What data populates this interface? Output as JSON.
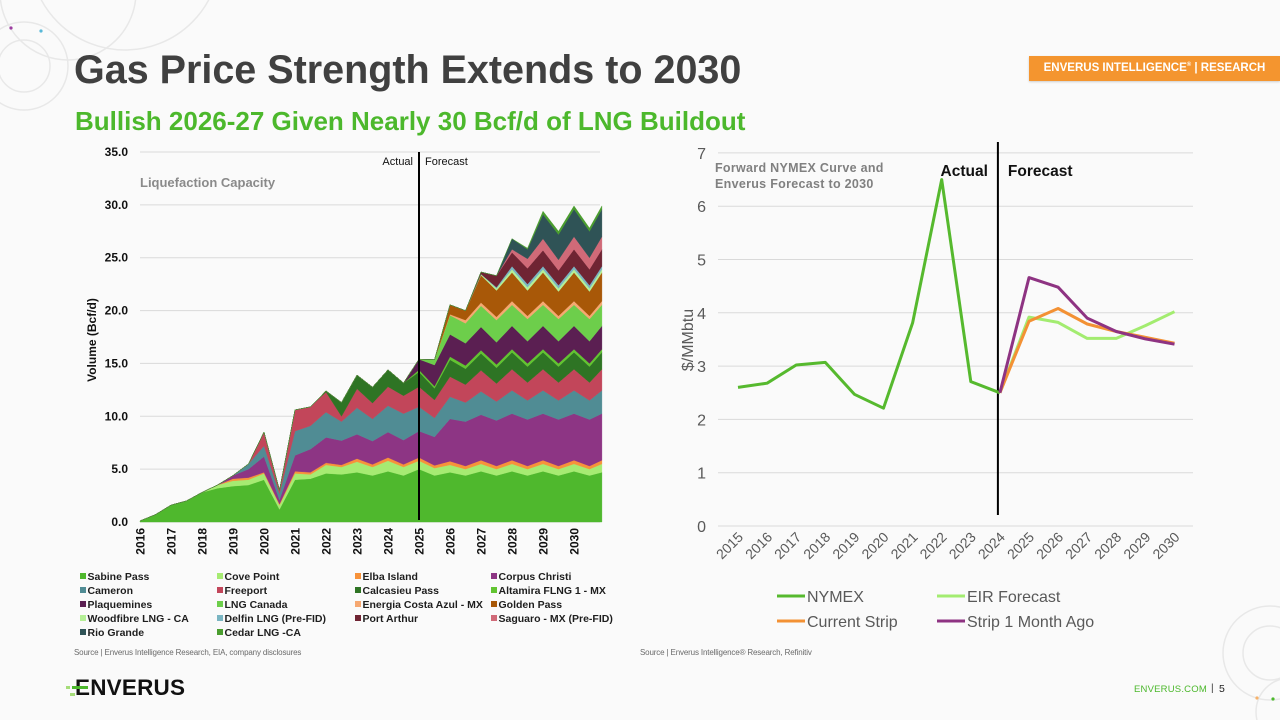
{
  "slide": {
    "title": "Gas Price Strength Extends to 2030",
    "subtitle": "Bullish 2026-27 Given Nearly 30 Bcf/d of LNG Buildout",
    "badge": {
      "text": "ENVERUS INTELLIGENCE",
      "registered": "®",
      "suffix": " | RESEARCH"
    },
    "colors": {
      "accent_green": "#4cb82c",
      "badge_orange": "#f4952f",
      "title_gray": "#404040"
    }
  },
  "footer": {
    "logo_text": "ENVERUS",
    "site": "ENVERUS.COM",
    "separator": "|",
    "page_number": "5"
  },
  "chart_data": [
    {
      "type": "area",
      "stacked": true,
      "title": "Liquefaction Capacity",
      "xlabel": "",
      "ylabel": "Volume (Bcf/d)",
      "ylim": [
        0,
        35
      ],
      "xlim": [
        2016,
        2031
      ],
      "yticks": [
        "0.0",
        "5.0",
        "10.0",
        "15.0",
        "20.0",
        "25.0",
        "30.0",
        "35.0"
      ],
      "xticks": [
        "2016",
        "2017",
        "2018",
        "2019",
        "2020",
        "2021",
        "2022",
        "2023",
        "2024",
        "2025",
        "2026",
        "2027",
        "2028",
        "2029",
        "2030"
      ],
      "grid": true,
      "legend": "bottom",
      "divider": {
        "at": 2025,
        "left_label": "Actual",
        "right_label": "Forecast"
      },
      "source": "Source | Enverus Intelligence Research, EIA, company disclosures",
      "x": [
        2016.0,
        2016.5,
        2017.0,
        2017.5,
        2018.0,
        2018.5,
        2019.0,
        2019.5,
        2020.0,
        2020.5,
        2021.0,
        2021.5,
        2022.0,
        2022.5,
        2023.0,
        2023.5,
        2024.0,
        2024.5,
        2025.0,
        2025.5,
        2026.0,
        2026.5,
        2027.0,
        2027.5,
        2028.0,
        2028.5,
        2029.0,
        2029.5,
        2030.0,
        2030.5,
        2030.9
      ],
      "series": [
        {
          "name": "Sabine Pass",
          "color": "#4fb82d",
          "values": [
            0.1,
            0.7,
            1.6,
            2.0,
            2.8,
            3.2,
            3.4,
            3.5,
            4.0,
            1.2,
            4.0,
            4.1,
            4.6,
            4.5,
            4.7,
            4.4,
            4.8,
            4.4,
            5.0,
            4.4,
            4.7,
            4.4,
            4.8,
            4.4,
            4.8,
            4.4,
            4.8,
            4.4,
            4.8,
            4.4,
            4.7
          ]
        },
        {
          "name": "Cove Point",
          "color": "#a6eb72",
          "values": [
            0,
            0,
            0,
            0,
            0,
            0.3,
            0.5,
            0.5,
            0.6,
            0.4,
            0.6,
            0.4,
            0.8,
            0.7,
            1.0,
            0.8,
            1.0,
            0.8,
            0.8,
            0.7,
            0.7,
            0.6,
            0.7,
            0.6,
            0.7,
            0.6,
            0.7,
            0.6,
            0.7,
            0.6,
            0.8
          ]
        },
        {
          "name": "Elba Island",
          "color": "#f7923a",
          "values": [
            0,
            0,
            0,
            0,
            0,
            0,
            0.2,
            0.2,
            0.1,
            0.1,
            0.2,
            0.2,
            0.2,
            0.2,
            0.3,
            0.25,
            0.3,
            0.25,
            0.3,
            0.25,
            0.35,
            0.3,
            0.35,
            0.3,
            0.35,
            0.3,
            0.35,
            0.3,
            0.35,
            0.3,
            0.35
          ]
        },
        {
          "name": "Corpus Christi",
          "color": "#8d3584",
          "values": [
            0,
            0,
            0,
            0,
            0,
            0,
            0.3,
            0.8,
            1.5,
            0.4,
            1.5,
            2.2,
            2.4,
            2.3,
            2.3,
            2.2,
            2.4,
            2.3,
            2.5,
            2.7,
            4.0,
            4.2,
            4.3,
            4.3,
            4.4,
            4.4,
            4.4,
            4.4,
            4.4,
            4.4,
            4.4
          ]
        },
        {
          "name": "Cameron",
          "color": "#508c94",
          "values": [
            0,
            0,
            0,
            0,
            0,
            0,
            0,
            0.5,
            1.0,
            0.6,
            2.3,
            2.2,
            2.4,
            1.8,
            2.5,
            2.1,
            2.5,
            2.5,
            2.3,
            1.8,
            2.1,
            1.8,
            2.2,
            1.8,
            2.2,
            1.8,
            2.2,
            1.8,
            2.2,
            1.8,
            2.2
          ]
        },
        {
          "name": "Freeport",
          "color": "#c2465a",
          "values": [
            0,
            0,
            0,
            0,
            0,
            0,
            0,
            0,
            1.3,
            0.3,
            2.0,
            1.8,
            1.9,
            0.5,
            1.8,
            1.5,
            1.8,
            1.7,
            1.9,
            1.7,
            1.9,
            1.7,
            2.0,
            1.7,
            2.0,
            1.7,
            2.0,
            1.7,
            2.0,
            1.7,
            2.0
          ]
        },
        {
          "name": "Calcasieu Pass",
          "color": "#2e7424",
          "values": [
            0,
            0,
            0,
            0,
            0,
            0,
            0,
            0,
            0,
            0,
            0,
            0,
            0.1,
            1.3,
            1.3,
            1.5,
            1.6,
            1.2,
            1.4,
            1.1,
            1.6,
            1.5,
            1.6,
            1.5,
            1.6,
            1.5,
            1.6,
            1.5,
            1.6,
            1.5,
            1.6
          ]
        },
        {
          "name": "Altamira FLNG 1 - MX",
          "color": "#62c431",
          "values": [
            0,
            0,
            0,
            0,
            0,
            0,
            0,
            0,
            0,
            0,
            0,
            0,
            0,
            0,
            0,
            0,
            0,
            0,
            0.2,
            0.2,
            0.3,
            0.3,
            0.3,
            0.3,
            0.3,
            0.3,
            0.3,
            0.3,
            0.3,
            0.3,
            0.3
          ]
        },
        {
          "name": "Plaquemines",
          "color": "#5b1f52",
          "values": [
            0,
            0,
            0,
            0,
            0,
            0,
            0,
            0,
            0,
            0,
            0,
            0,
            0,
            0,
            0,
            0,
            0,
            0,
            1.0,
            2.0,
            2.1,
            2.1,
            2.2,
            2.1,
            2.2,
            2.1,
            2.2,
            2.1,
            2.2,
            2.1,
            2.2
          ]
        },
        {
          "name": "LNG Canada",
          "color": "#6dce4b",
          "values": [
            0,
            0,
            0,
            0,
            0,
            0,
            0,
            0,
            0,
            0,
            0,
            0,
            0,
            0,
            0,
            0,
            0,
            0,
            0,
            0.5,
            1.8,
            1.9,
            2.0,
            2.1,
            2.0,
            2.1,
            2.0,
            2.1,
            2.0,
            2.1,
            2.0
          ]
        },
        {
          "name": "Energia Costa Azul - MX",
          "color": "#f6a871",
          "values": [
            0,
            0,
            0,
            0,
            0,
            0,
            0,
            0,
            0,
            0,
            0,
            0,
            0,
            0,
            0,
            0,
            0,
            0,
            0,
            0,
            0.1,
            0.3,
            0.3,
            0.3,
            0.35,
            0.3,
            0.35,
            0.3,
            0.35,
            0.3,
            0.35
          ]
        },
        {
          "name": "Golden Pass",
          "color": "#a85808",
          "values": [
            0,
            0,
            0,
            0,
            0,
            0,
            0,
            0,
            0,
            0,
            0,
            0,
            0,
            0,
            0,
            0,
            0,
            0,
            0,
            0,
            0.9,
            0.9,
            2.6,
            2.5,
            2.7,
            2.4,
            2.7,
            2.3,
            2.7,
            2.3,
            2.7
          ]
        },
        {
          "name": "Woodfibre LNG - CA",
          "color": "#b5f096",
          "values": [
            0,
            0,
            0,
            0,
            0,
            0,
            0,
            0,
            0,
            0,
            0,
            0,
            0,
            0,
            0,
            0,
            0,
            0,
            0,
            0,
            0,
            0,
            0.1,
            0.2,
            0.3,
            0.3,
            0.3,
            0.3,
            0.3,
            0.3,
            0.3
          ]
        },
        {
          "name": "Delfin LNG (Pre-FID)",
          "color": "#7ab5c2",
          "values": [
            0,
            0,
            0,
            0,
            0,
            0,
            0,
            0,
            0,
            0,
            0,
            0,
            0,
            0,
            0,
            0,
            0,
            0,
            0,
            0,
            0,
            0,
            0,
            0.1,
            0.3,
            0.3,
            0.3,
            0.3,
            0.3,
            0.3,
            0.3
          ]
        },
        {
          "name": "Port Arthur",
          "color": "#6f2433",
          "values": [
            0,
            0,
            0,
            0,
            0,
            0,
            0,
            0,
            0,
            0,
            0,
            0,
            0,
            0,
            0,
            0,
            0,
            0,
            0,
            0,
            0,
            0,
            0.2,
            1.1,
            1.3,
            1.5,
            1.5,
            1.4,
            1.6,
            1.5,
            1.6
          ]
        },
        {
          "name": "Saguaro - MX (Pre-FID)",
          "color": "#d06a78",
          "values": [
            0,
            0,
            0,
            0,
            0,
            0,
            0,
            0,
            0,
            0,
            0,
            0,
            0,
            0,
            0,
            0,
            0,
            0,
            0,
            0,
            0,
            0,
            0,
            0,
            0.3,
            0.9,
            1.1,
            1.0,
            1.2,
            1.1,
            1.2
          ]
        },
        {
          "name": "Rio Grande",
          "color": "#2f5356",
          "values": [
            0,
            0,
            0,
            0,
            0,
            0,
            0,
            0,
            0,
            0,
            0,
            0,
            0,
            0,
            0,
            0,
            0,
            0,
            0,
            0,
            0,
            0,
            0,
            0,
            1.0,
            0.9,
            2.3,
            2.4,
            2.6,
            2.5,
            2.6
          ]
        },
        {
          "name": "Cedar LNG -CA",
          "color": "#4a9d2e",
          "values": [
            0,
            0,
            0,
            0,
            0,
            0,
            0,
            0,
            0,
            0,
            0,
            0,
            0,
            0,
            0,
            0,
            0,
            0,
            0,
            0,
            0,
            0,
            0,
            0,
            0,
            0.1,
            0.3,
            0.3,
            0.3,
            0.3,
            0.3
          ]
        }
      ]
    },
    {
      "type": "line",
      "title": "Forward NYMEX Curve and Enverus Forecast to 2030",
      "title_lines": [
        "Forward NYMEX Curve and",
        "Enverus Forecast to 2030"
      ],
      "xlabel": "",
      "ylabel": "$/MMbtu",
      "ylim": [
        0,
        7
      ],
      "yticks": [
        "0",
        "1",
        "2",
        "3",
        "4",
        "5",
        "6",
        "7"
      ],
      "categories": [
        "2015",
        "2016",
        "2017",
        "2018",
        "2019",
        "2020",
        "2021",
        "2022",
        "2023",
        "2024",
        "2025",
        "2026",
        "2027",
        "2028",
        "2029",
        "2030"
      ],
      "grid": true,
      "legend": "bottom",
      "divider": {
        "at": "2024",
        "left_label": "Actual",
        "right_label": "Forecast"
      },
      "source": "Source | Enverus Intelligence® Research, Refinitiv",
      "series": [
        {
          "name": "NYMEX",
          "color": "#56b92e",
          "values": [
            2.6,
            2.68,
            3.02,
            3.07,
            2.47,
            2.21,
            3.81,
            6.5,
            2.71,
            2.5,
            null,
            null,
            null,
            null,
            null,
            null
          ]
        },
        {
          "name": "EIR Forecast",
          "color": "#a3ec70",
          "values": [
            null,
            null,
            null,
            null,
            null,
            null,
            null,
            null,
            null,
            2.5,
            3.92,
            3.82,
            3.52,
            3.52,
            3.76,
            4.02
          ]
        },
        {
          "name": "Current Strip",
          "color": "#f39134",
          "values": [
            null,
            null,
            null,
            null,
            null,
            null,
            null,
            null,
            null,
            2.5,
            3.84,
            4.08,
            3.79,
            3.65,
            3.54,
            3.43
          ]
        },
        {
          "name": "Strip 1 Month Ago",
          "color": "#8e3382",
          "values": [
            null,
            null,
            null,
            null,
            null,
            null,
            null,
            null,
            null,
            2.5,
            4.66,
            4.48,
            3.9,
            3.65,
            3.51,
            3.41
          ]
        }
      ]
    }
  ]
}
